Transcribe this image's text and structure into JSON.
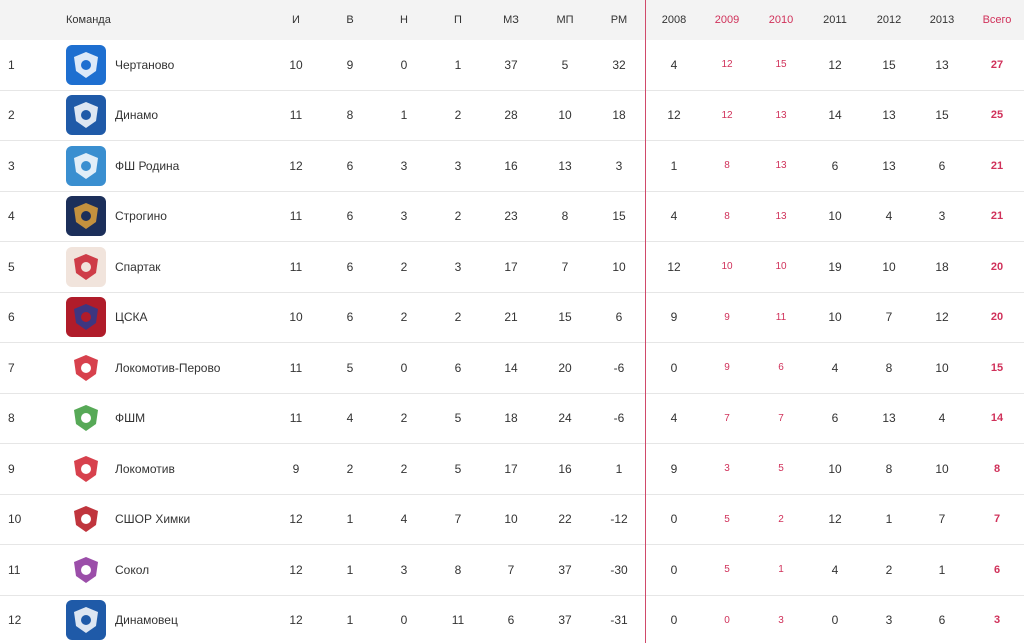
{
  "header": {
    "team": "Команда",
    "games": "И",
    "wins": "В",
    "draws": "Н",
    "losses": "П",
    "goals_for": "МЗ",
    "goals_against": "МП",
    "goal_diff": "РМ",
    "y2008": "2008",
    "y2009": "2009",
    "y2010": "2010",
    "y2011": "2011",
    "y2012": "2012",
    "y2013": "2013",
    "total": "Всего"
  },
  "rows": [
    {
      "pos": "1",
      "team": "Чертаново",
      "logo": {
        "bg": "#1e6fd0",
        "fg": "#ffffff",
        "icon": "chertanovo-logo"
      },
      "i": "10",
      "w": "9",
      "d": "0",
      "l": "1",
      "gf": "37",
      "ga": "5",
      "gd": "32",
      "y0": "4",
      "y1": "12",
      "y2": "15",
      "y3": "12",
      "y4": "15",
      "y5": "13",
      "tot": "27"
    },
    {
      "pos": "2",
      "team": "Динамо",
      "logo": {
        "bg": "#1f5aa8",
        "fg": "#ffffff",
        "icon": "dinamo-logo"
      },
      "i": "11",
      "w": "8",
      "d": "1",
      "l": "2",
      "gf": "28",
      "ga": "10",
      "gd": "18",
      "y0": "12",
      "y1": "12",
      "y2": "13",
      "y3": "14",
      "y4": "13",
      "y5": "15",
      "tot": "25"
    },
    {
      "pos": "3",
      "team": "ФШ Родина",
      "logo": {
        "bg": "#3a8fd0",
        "fg": "#ffffff",
        "icon": "rodina-logo"
      },
      "i": "12",
      "w": "6",
      "d": "3",
      "l": "3",
      "gf": "16",
      "ga": "13",
      "gd": "3",
      "y0": "1",
      "y1": "8",
      "y2": "13",
      "y3": "6",
      "y4": "13",
      "y5": "6",
      "tot": "21"
    },
    {
      "pos": "4",
      "team": "Строгино",
      "logo": {
        "bg": "#1c2f5a",
        "fg": "#e2a23a",
        "icon": "strogino-logo"
      },
      "i": "11",
      "w": "6",
      "d": "3",
      "l": "2",
      "gf": "23",
      "ga": "8",
      "gd": "15",
      "y0": "4",
      "y1": "8",
      "y2": "13",
      "y3": "10",
      "y4": "4",
      "y5": "3",
      "tot": "21"
    },
    {
      "pos": "5",
      "team": "Спартак",
      "logo": {
        "bg": "#f1e4dc",
        "fg": "#c8202e",
        "icon": "spartak-logo"
      },
      "i": "11",
      "w": "6",
      "d": "2",
      "l": "3",
      "gf": "17",
      "ga": "7",
      "gd": "10",
      "y0": "12",
      "y1": "10",
      "y2": "10",
      "y3": "19",
      "y4": "10",
      "y5": "18",
      "tot": "20"
    },
    {
      "pos": "6",
      "team": "ЦСКА",
      "logo": {
        "bg": "#b01c2a",
        "fg": "#2a3b8f",
        "icon": "cska-logo"
      },
      "i": "10",
      "w": "6",
      "d": "2",
      "l": "2",
      "gf": "21",
      "ga": "15",
      "gd": "6",
      "y0": "9",
      "y1": "9",
      "y2": "11",
      "y3": "10",
      "y4": "7",
      "y5": "12",
      "tot": "20"
    },
    {
      "pos": "7",
      "team": "Локомотив-Перово",
      "logo": {
        "bg": "#ffffff",
        "fg": "#d0202e",
        "icon": "lokomotiv-perovo-logo"
      },
      "i": "11",
      "w": "5",
      "d": "0",
      "l": "6",
      "gf": "14",
      "ga": "20",
      "gd": "-6",
      "y0": "0",
      "y1": "9",
      "y2": "6",
      "y3": "4",
      "y4": "8",
      "y5": "10",
      "tot": "15"
    },
    {
      "pos": "8",
      "team": "ФШМ",
      "logo": {
        "bg": "#ffffff",
        "fg": "#3a9a3a",
        "icon": "fshm-logo"
      },
      "i": "11",
      "w": "4",
      "d": "2",
      "l": "5",
      "gf": "18",
      "ga": "24",
      "gd": "-6",
      "y0": "4",
      "y1": "7",
      "y2": "7",
      "y3": "6",
      "y4": "13",
      "y5": "4",
      "tot": "14"
    },
    {
      "pos": "9",
      "team": "Локомотив",
      "logo": {
        "bg": "#ffffff",
        "fg": "#d0202e",
        "icon": "lokomotiv-logo"
      },
      "i": "9",
      "w": "2",
      "d": "2",
      "l": "5",
      "gf": "17",
      "ga": "16",
      "gd": "1",
      "y0": "9",
      "y1": "3",
      "y2": "5",
      "y3": "10",
      "y4": "8",
      "y5": "10",
      "tot": "8"
    },
    {
      "pos": "10",
      "team": "СШОР Химки",
      "logo": {
        "bg": "#ffffff",
        "fg": "#b5121b",
        "icon": "khimki-logo"
      },
      "i": "12",
      "w": "1",
      "d": "4",
      "l": "7",
      "gf": "10",
      "ga": "22",
      "gd": "-12",
      "y0": "0",
      "y1": "5",
      "y2": "2",
      "y3": "12",
      "y4": "1",
      "y5": "7",
      "tot": "7"
    },
    {
      "pos": "11",
      "team": "Сокол",
      "logo": {
        "bg": "#ffffff",
        "fg": "#8a2f9a",
        "icon": "sokol-logo"
      },
      "i": "12",
      "w": "1",
      "d": "3",
      "l": "8",
      "gf": "7",
      "ga": "37",
      "gd": "-30",
      "y0": "0",
      "y1": "5",
      "y2": "1",
      "y3": "4",
      "y4": "2",
      "y5": "1",
      "tot": "6"
    },
    {
      "pos": "12",
      "team": "Динамовец",
      "logo": {
        "bg": "#1f5aa8",
        "fg": "#ffffff",
        "icon": "dinamovets-logo"
      },
      "i": "12",
      "w": "1",
      "d": "0",
      "l": "11",
      "gf": "6",
      "ga": "37",
      "gd": "-31",
      "y0": "0",
      "y1": "0",
      "y2": "3",
      "y3": "0",
      "y4": "3",
      "y5": "6",
      "tot": "3"
    }
  ],
  "colors": {
    "accent": "#d0315a",
    "header_bg": "#f3f3f3",
    "divider": "#d04a6a"
  }
}
